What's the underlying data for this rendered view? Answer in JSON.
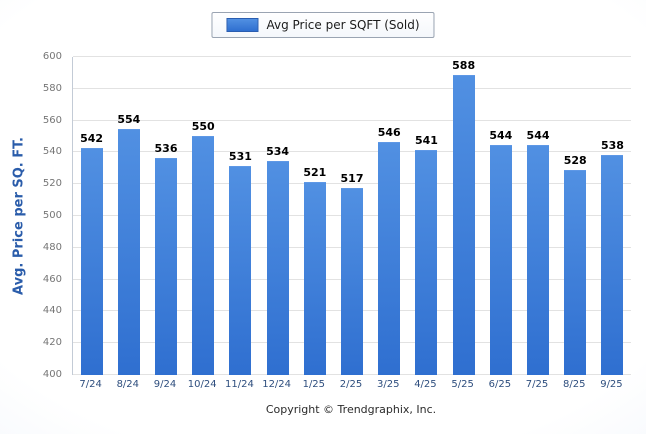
{
  "legend": {
    "label": "Avg Price per SQFT (Sold)"
  },
  "footer": {
    "copyright": "Copyright © Trendgraphix, Inc."
  },
  "chart_data": {
    "type": "bar",
    "title": "Avg Price per SQFT (Sold)",
    "xlabel": "",
    "ylabel": "Avg. Price per SQ. FT.",
    "categories": [
      "7/24",
      "8/24",
      "9/24",
      "10/24",
      "11/24",
      "12/24",
      "1/25",
      "2/25",
      "3/25",
      "4/25",
      "5/25",
      "6/25",
      "7/25",
      "8/25",
      "9/25"
    ],
    "values": [
      542,
      554,
      536,
      550,
      531,
      534,
      521,
      517,
      546,
      541,
      588,
      544,
      544,
      528,
      538
    ],
    "ylim": [
      400,
      600
    ],
    "ytick_step": 20,
    "grid": true,
    "legend_position": "top-center",
    "colors": {
      "bar_top": "#5190e2",
      "bar_bottom": "#2f6fd0",
      "axis_title": "#2a5caa",
      "tick_label": "#767676",
      "x_label": "#2e4e7e",
      "value_label": "#000000",
      "gridline": "#e2e2e2"
    }
  }
}
